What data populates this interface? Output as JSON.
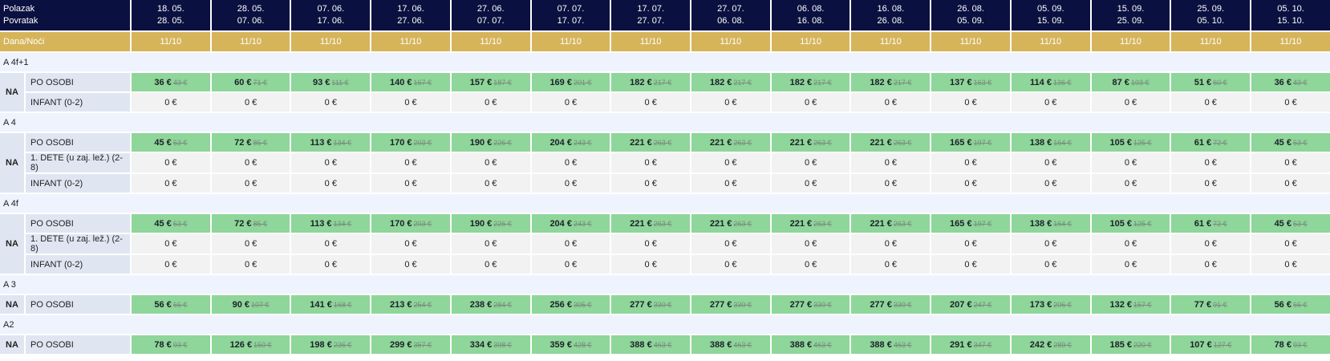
{
  "header": {
    "departure_label": "Polazak",
    "return_label": "Povratak",
    "nights_label": "Dana/Noći"
  },
  "colors": {
    "header_bg": "#0a1140",
    "nights_bg": "#d6b45a",
    "price_bg": "#8ed69a",
    "section_bg": "#eef3fe"
  },
  "terms": [
    {
      "from": "18. 05.",
      "to": "28. 05.",
      "nights": "11/10"
    },
    {
      "from": "28. 05.",
      "to": "07. 06.",
      "nights": "11/10"
    },
    {
      "from": "07. 06.",
      "to": "17. 06.",
      "nights": "11/10"
    },
    {
      "from": "17. 06.",
      "to": "27. 06.",
      "nights": "11/10"
    },
    {
      "from": "27. 06.",
      "to": "07. 07.",
      "nights": "11/10"
    },
    {
      "from": "07. 07.",
      "to": "17. 07.",
      "nights": "11/10"
    },
    {
      "from": "17. 07.",
      "to": "27. 07.",
      "nights": "11/10"
    },
    {
      "from": "27. 07.",
      "to": "06. 08.",
      "nights": "11/10"
    },
    {
      "from": "06. 08.",
      "to": "16. 08.",
      "nights": "11/10"
    },
    {
      "from": "16. 08.",
      "to": "26. 08.",
      "nights": "11/10"
    },
    {
      "from": "26. 08.",
      "to": "05. 09.",
      "nights": "11/10"
    },
    {
      "from": "05. 09.",
      "to": "15. 09.",
      "nights": "11/10"
    },
    {
      "from": "15. 09.",
      "to": "25. 09.",
      "nights": "11/10"
    },
    {
      "from": "25. 09.",
      "to": "05. 10.",
      "nights": "11/10"
    },
    {
      "from": "05. 10.",
      "to": "15. 10.",
      "nights": "11/10"
    }
  ],
  "sections": [
    {
      "name": "A 4f+1",
      "service": "NA",
      "rows": [
        {
          "label": "PO OSOBI",
          "prices": [
            "36 €",
            "60 €",
            "93 €",
            "140 €",
            "157 €",
            "169 €",
            "182 €",
            "182 €",
            "182 €",
            "182 €",
            "137 €",
            "114 €",
            "87 €",
            "51 €",
            "36 €"
          ],
          "old": [
            "43 €",
            "71 €",
            "111 €",
            "167 €",
            "187 €",
            "201 €",
            "217 €",
            "217 €",
            "217 €",
            "217 €",
            "163 €",
            "136 €",
            "103 €",
            "60 €",
            "43 €"
          ]
        },
        {
          "label": "INFANT (0-2)",
          "prices": [
            "0 €",
            "0 €",
            "0 €",
            "0 €",
            "0 €",
            "0 €",
            "0 €",
            "0 €",
            "0 €",
            "0 €",
            "0 €",
            "0 €",
            "0 €",
            "0 €",
            "0 €"
          ]
        }
      ]
    },
    {
      "name": "A 4",
      "service": "NA",
      "rows": [
        {
          "label": "PO OSOBI",
          "prices": [
            "45 €",
            "72 €",
            "113 €",
            "170 €",
            "190 €",
            "204 €",
            "221 €",
            "221 €",
            "221 €",
            "221 €",
            "165 €",
            "138 €",
            "105 €",
            "61 €",
            "45 €"
          ],
          "old": [
            "53 €",
            "85 €",
            "134 €",
            "203 €",
            "226 €",
            "243 €",
            "263 €",
            "263 €",
            "263 €",
            "263 €",
            "197 €",
            "164 €",
            "125 €",
            "72 €",
            "53 €"
          ]
        },
        {
          "label": "1. DETE (u zaj. lež.) (2-8)",
          "prices": [
            "0 €",
            "0 €",
            "0 €",
            "0 €",
            "0 €",
            "0 €",
            "0 €",
            "0 €",
            "0 €",
            "0 €",
            "0 €",
            "0 €",
            "0 €",
            "0 €",
            "0 €"
          ]
        },
        {
          "label": "INFANT (0-2)",
          "prices": [
            "0 €",
            "0 €",
            "0 €",
            "0 €",
            "0 €",
            "0 €",
            "0 €",
            "0 €",
            "0 €",
            "0 €",
            "0 €",
            "0 €",
            "0 €",
            "0 €",
            "0 €"
          ]
        }
      ]
    },
    {
      "name": "A 4f",
      "service": "NA",
      "rows": [
        {
          "label": "PO OSOBI",
          "prices": [
            "45 €",
            "72 €",
            "113 €",
            "170 €",
            "190 €",
            "204 €",
            "221 €",
            "221 €",
            "221 €",
            "221 €",
            "165 €",
            "138 €",
            "105 €",
            "61 €",
            "45 €"
          ],
          "old": [
            "53 €",
            "85 €",
            "134 €",
            "203 €",
            "226 €",
            "243 €",
            "263 €",
            "263 €",
            "263 €",
            "263 €",
            "197 €",
            "164 €",
            "125 €",
            "72 €",
            "53 €"
          ]
        },
        {
          "label": "1. DETE (u zaj. lež.) (2-8)",
          "prices": [
            "0 €",
            "0 €",
            "0 €",
            "0 €",
            "0 €",
            "0 €",
            "0 €",
            "0 €",
            "0 €",
            "0 €",
            "0 €",
            "0 €",
            "0 €",
            "0 €",
            "0 €"
          ]
        },
        {
          "label": "INFANT (0-2)",
          "prices": [
            "0 €",
            "0 €",
            "0 €",
            "0 €",
            "0 €",
            "0 €",
            "0 €",
            "0 €",
            "0 €",
            "0 €",
            "0 €",
            "0 €",
            "0 €",
            "0 €",
            "0 €"
          ]
        }
      ]
    },
    {
      "name": "A 3",
      "service": "NA",
      "rows": [
        {
          "label": "PO OSOBI",
          "prices": [
            "56 €",
            "90 €",
            "141 €",
            "213 €",
            "238 €",
            "256 €",
            "277 €",
            "277 €",
            "277 €",
            "277 €",
            "207 €",
            "173 €",
            "132 €",
            "77 €",
            "56 €"
          ],
          "old": [
            "66 €",
            "107 €",
            "168 €",
            "254 €",
            "284 €",
            "305 €",
            "330 €",
            "330 €",
            "330 €",
            "330 €",
            "247 €",
            "206 €",
            "157 €",
            "91 €",
            "66 €"
          ]
        }
      ]
    },
    {
      "name": "A2",
      "service": "NA",
      "rows": [
        {
          "label": "PO OSOBI",
          "prices": [
            "78 €",
            "126 €",
            "198 €",
            "299 €",
            "334 €",
            "359 €",
            "388 €",
            "388 €",
            "388 €",
            "388 €",
            "291 €",
            "242 €",
            "185 €",
            "107 €",
            "78 €"
          ],
          "old": [
            "93 €",
            "150 €",
            "236 €",
            "357 €",
            "398 €",
            "428 €",
            "463 €",
            "463 €",
            "463 €",
            "463 €",
            "347 €",
            "289 €",
            "220 €",
            "127 €",
            "93 €"
          ]
        }
      ]
    }
  ]
}
